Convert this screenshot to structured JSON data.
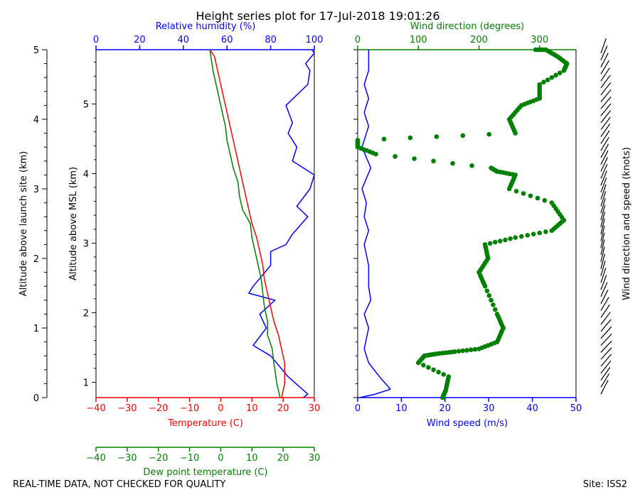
{
  "title": "Height series plot for 17-Jul-2018 19:01:26",
  "footer_left": "REAL-TIME DATA, NOT CHECKED FOR QUALITY",
  "footer_right": "Site: ISS2",
  "colors": {
    "temperature": "#ff0000",
    "dewpoint": "#008000",
    "humidity": "#0000ff",
    "wind_speed": "#0000ff",
    "wind_dir": "#008000",
    "barbs": "#000000"
  },
  "chart_data": [
    {
      "type": "line",
      "panel": "thermo",
      "left_axis_outer": {
        "label": "Altitude above launch site (km)",
        "range": [
          0,
          5
        ],
        "ticks": [
          "0",
          "1",
          "2",
          "3",
          "4",
          "5"
        ]
      },
      "left_axis_inner": {
        "label": "Altitude above MSL (km)",
        "range": [
          0.78,
          5.78
        ],
        "ticks": [
          "1",
          "2",
          "3",
          "4",
          "5"
        ]
      },
      "x_bottom_temperature": {
        "label": "Temperature (C)",
        "range": [
          -40,
          30
        ],
        "ticks": [
          "−40",
          "−30",
          "−20",
          "−10",
          "0",
          "10",
          "20",
          "30"
        ]
      },
      "x_bottom_dewpoint": {
        "label": "Dew point temperature (C)",
        "range": [
          -40,
          30
        ],
        "ticks": [
          "−40",
          "−30",
          "−20",
          "−10",
          "0",
          "10",
          "20",
          "30"
        ]
      },
      "x_top_humidity": {
        "label": "Relative humidity (%)",
        "range": [
          0,
          100
        ],
        "ticks": [
          "0",
          "20",
          "40",
          "60",
          "80",
          "100"
        ]
      },
      "series": [
        {
          "name": "Temperature",
          "x": [
            19.5,
            20.5,
            20.5,
            19.5,
            18.5,
            17,
            16,
            15,
            14,
            13.5,
            12.5,
            11.5,
            10,
            9,
            8,
            7,
            6,
            5,
            4,
            3,
            2,
            1,
            0,
            -1,
            -2,
            -3.5
          ],
          "y": [
            0,
            0.2,
            0.5,
            0.7,
            0.9,
            1.1,
            1.3,
            1.5,
            1.7,
            1.9,
            2.1,
            2.3,
            2.5,
            2.7,
            2.9,
            3.1,
            3.3,
            3.5,
            3.7,
            3.9,
            4.1,
            4.3,
            4.5,
            4.7,
            4.9,
            5.0
          ]
        },
        {
          "name": "Dew point",
          "x": [
            19,
            18,
            17,
            16.5,
            15,
            15,
            14,
            13.5,
            13,
            12,
            11,
            10,
            9.5,
            7,
            6,
            5.5,
            4,
            3,
            2,
            1.5,
            0.5,
            -0.5,
            -1.5,
            -2.5,
            -3.5
          ],
          "y": [
            0,
            0.2,
            0.5,
            0.7,
            0.9,
            1.1,
            1.3,
            1.5,
            1.7,
            1.9,
            2.1,
            2.3,
            2.5,
            2.7,
            2.9,
            3.1,
            3.3,
            3.5,
            3.7,
            3.9,
            4.1,
            4.3,
            4.5,
            4.7,
            5.0
          ]
        },
        {
          "name": "Relative humidity",
          "x": [
            95,
            97,
            88,
            80,
            72,
            78,
            75,
            82,
            70,
            72,
            80,
            80,
            87,
            90,
            97,
            92,
            98,
            100,
            90,
            92,
            88,
            90,
            87,
            97,
            98,
            96,
            100,
            99
          ],
          "y": [
            0,
            0.05,
            0.3,
            0.6,
            0.75,
            1.0,
            1.2,
            1.4,
            1.5,
            1.6,
            1.9,
            2.1,
            2.2,
            2.35,
            2.6,
            2.75,
            3.0,
            3.2,
            3.4,
            3.6,
            3.8,
            3.95,
            4.2,
            4.5,
            4.7,
            4.8,
            4.95,
            5.0
          ]
        }
      ]
    },
    {
      "type": "scatter",
      "panel": "wind",
      "x_bottom_speed": {
        "label": "Wind speed (m/s)",
        "range": [
          0,
          50
        ],
        "ticks": [
          "0",
          "10",
          "20",
          "30",
          "40",
          "50"
        ]
      },
      "x_top_direction": {
        "label": "Wind direction (degrees)",
        "range": [
          0,
          360
        ],
        "ticks": [
          "0",
          "100",
          "200",
          "300"
        ]
      },
      "right_label": "Wind direction and speed (knots)",
      "series": [
        {
          "name": "Wind speed",
          "x": [
            0.5,
            4,
            7.5,
            5,
            2.5,
            1.5,
            2.5,
            1.5,
            3,
            2.5,
            2.5,
            1.5,
            2.5,
            1.5,
            2,
            1,
            3,
            1,
            2.5,
            1.5,
            2.5,
            1.5,
            2.5,
            2.5,
            2.5
          ],
          "y": [
            0,
            0.05,
            0.12,
            0.3,
            0.5,
            0.7,
            1.0,
            1.2,
            1.4,
            1.6,
            1.9,
            2.2,
            2.4,
            2.6,
            2.8,
            3.0,
            3.3,
            3.6,
            3.9,
            4.1,
            4.3,
            4.5,
            4.7,
            4.9,
            5.0
          ]
        },
        {
          "name": "Wind direction",
          "x": [
            140,
            145,
            150,
            100,
            110,
            130,
            160,
            200,
            230,
            240,
            230,
            210,
            200,
            215,
            210,
            260,
            320,
            340,
            320,
            250,
            260,
            230,
            220,
            30,
            0,
            0,
            260,
            250,
            270,
            300,
            300,
            340,
            345,
            330,
            310,
            290
          ],
          "y": [
            0,
            0.1,
            0.3,
            0.5,
            0.6,
            0.63,
            0.66,
            0.7,
            0.8,
            1.0,
            1.2,
            1.6,
            1.8,
            2.0,
            2.2,
            2.3,
            2.4,
            2.55,
            2.8,
            3.0,
            3.2,
            3.25,
            3.3,
            3.5,
            3.6,
            3.7,
            3.8,
            4.0,
            4.2,
            4.3,
            4.5,
            4.7,
            4.8,
            4.9,
            5.0,
            5.0
          ]
        }
      ]
    }
  ]
}
